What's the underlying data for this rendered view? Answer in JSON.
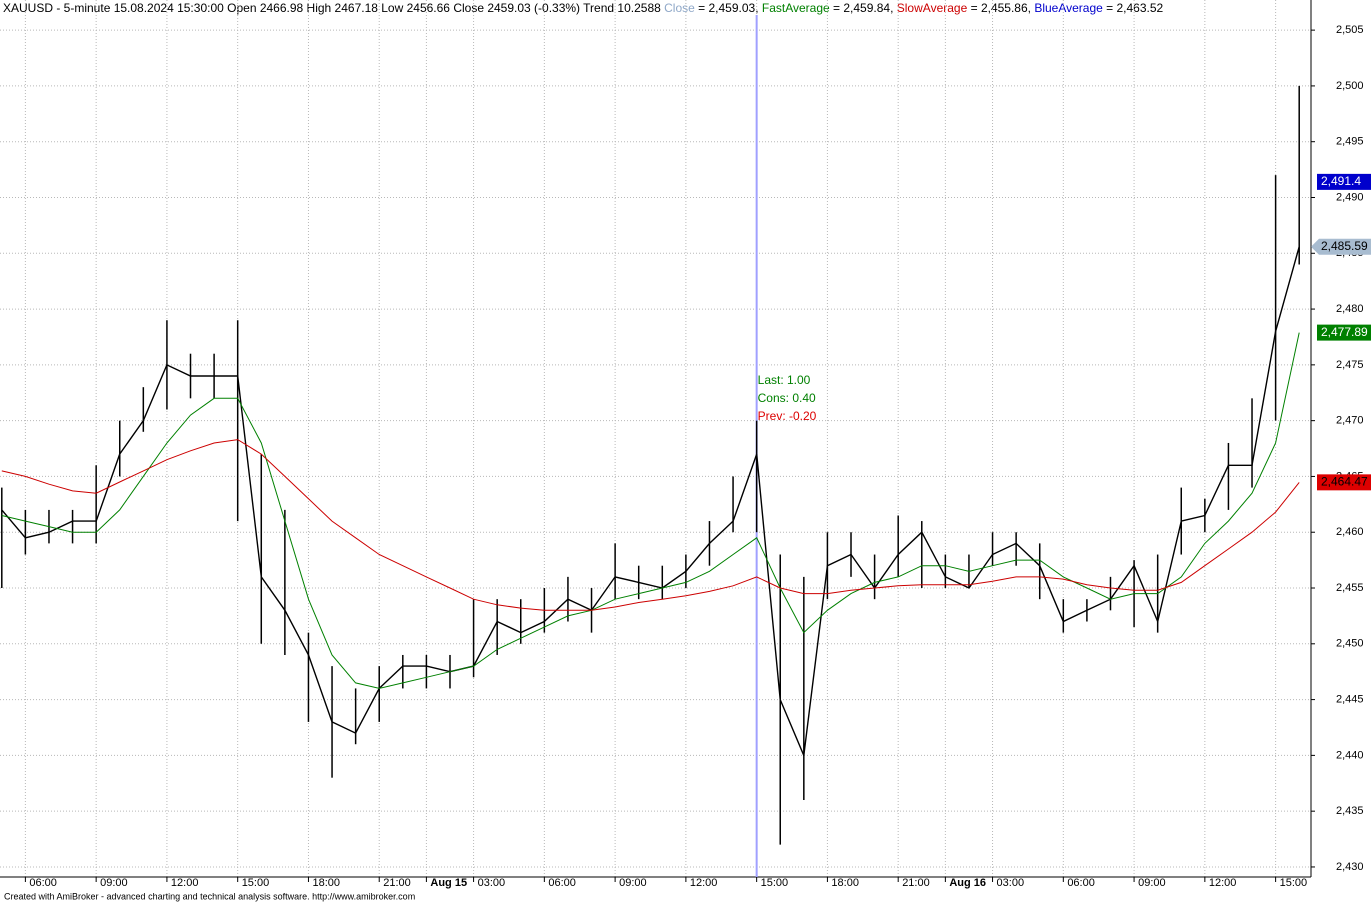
{
  "footer": "Created with AmiBroker - advanced charting and technical analysis software. http://www.amibroker.com",
  "chart_data": {
    "type": "ohlc-line",
    "header": [
      {
        "text": "XAUUSD - 5-minute 15.08.2024 15:30:00 Open 2466.98 High 2467.18 Low 2456.66 Close 2459.03 (-0.33%) Trend 10.2588 ",
        "color": "#000000"
      },
      {
        "text": "Close",
        "color": "#8fa8c8"
      },
      {
        "text": " = 2,459.03, ",
        "color": "#000000"
      },
      {
        "text": "FastAverage",
        "color": "#008000"
      },
      {
        "text": " = 2,459.84, ",
        "color": "#000000"
      },
      {
        "text": "SlowAverage",
        "color": "#cc0000"
      },
      {
        "text": " = 2,455.86, ",
        "color": "#000000"
      },
      {
        "text": "BlueAverage",
        "color": "#0000cc"
      },
      {
        "text": " = 2,463.52",
        "color": "#000000"
      }
    ],
    "categories": [
      null,
      "06:00",
      null,
      null,
      "09:00",
      null,
      null,
      "12:00",
      null,
      null,
      "15:00",
      null,
      null,
      "18:00",
      null,
      null,
      "21:00",
      null,
      "Aug 15",
      null,
      "03:00",
      null,
      null,
      "06:00",
      null,
      null,
      "09:00",
      null,
      null,
      "12:00",
      null,
      null,
      "15:00",
      null,
      null,
      "18:00",
      null,
      null,
      "21:00",
      null,
      "Aug 16",
      null,
      "03:00",
      null,
      null,
      "06:00",
      null,
      null,
      "09:00",
      null,
      null,
      "12:00",
      null,
      null,
      "15:00",
      null
    ],
    "high": [
      2464,
      2462,
      2462,
      2462,
      2466,
      2470,
      2473,
      2479,
      2476,
      2476,
      2479,
      2467,
      2462,
      2451,
      2448,
      2446,
      2448,
      2449,
      2449,
      2449,
      2454,
      2454,
      2454,
      2455,
      2456,
      2455,
      2459,
      2457,
      2457,
      2458,
      2461,
      2465,
      2470,
      2458,
      2456,
      2460,
      2460,
      2458,
      2461.5,
      2461,
      2458,
      2458,
      2460,
      2460,
      2459,
      2454,
      2454,
      2456,
      2457.5,
      2458,
      2464,
      2463,
      2468,
      2472,
      2492,
      2500
    ],
    "low": [
      2455,
      2458,
      2459,
      2459,
      2459,
      2465,
      2469,
      2471,
      2472,
      2472,
      2461,
      2450,
      2449,
      2443,
      2438,
      2441,
      2443,
      2446,
      2446,
      2446,
      2447,
      2449,
      2450,
      2451,
      2452,
      2451,
      2454,
      2454,
      2454,
      2455,
      2457,
      2460,
      2460,
      2432,
      2436,
      2454,
      2456,
      2454,
      2456,
      2455,
      2455,
      2455,
      2457,
      2457,
      2454,
      2451,
      2452,
      2453,
      2451.5,
      2451,
      2458,
      2460,
      2462,
      2464,
      2470,
      2484
    ],
    "series": [
      {
        "name": "Close",
        "color": "#000000",
        "values": [
          2462,
          2459.5,
          2460,
          2461,
          2461,
          2467,
          2470,
          2475,
          2474,
          2474,
          2474,
          2456,
          2453,
          2449,
          2443,
          2442,
          2446,
          2448,
          2448,
          2447.5,
          2448,
          2452,
          2451,
          2452,
          2454,
          2453,
          2456,
          2455.5,
          2455,
          2456.5,
          2459,
          2461,
          2467,
          2445,
          2440,
          2457,
          2458,
          2455,
          2458,
          2460,
          2456,
          2455,
          2458,
          2459,
          2457,
          2452,
          2453,
          2454,
          2457,
          2452,
          2461,
          2461.5,
          2466,
          2466,
          2478,
          2485.59
        ]
      },
      {
        "name": "FastAverage",
        "color": "#008000",
        "values": [
          2461.5,
          2461,
          2460.5,
          2460,
          2460,
          2462,
          2465,
          2468,
          2470.5,
          2472,
          2472,
          2468,
          2461,
          2454,
          2449,
          2446.5,
          2446,
          2446.5,
          2447,
          2447.5,
          2448,
          2449.5,
          2450.5,
          2451.5,
          2452.5,
          2453,
          2454,
          2454.5,
          2455,
          2455.5,
          2456.5,
          2458,
          2459.5,
          2455,
          2451,
          2453,
          2454.5,
          2455.5,
          2456,
          2457,
          2457,
          2456.5,
          2457,
          2457.5,
          2457.5,
          2456,
          2455,
          2454,
          2454.5,
          2454.5,
          2456,
          2459,
          2461,
          2463.5,
          2468,
          2477.89
        ]
      },
      {
        "name": "SlowAverage",
        "color": "#cc0000",
        "values": [
          2465.5,
          2465,
          2464.3,
          2463.7,
          2463.5,
          2464.5,
          2465.5,
          2466.5,
          2467.3,
          2468,
          2468.3,
          2467,
          2465,
          2463,
          2461,
          2459.5,
          2458,
          2457,
          2456,
          2455,
          2454,
          2453.5,
          2453.2,
          2453,
          2453,
          2453,
          2453.3,
          2453.7,
          2454,
          2454.3,
          2454.7,
          2455.2,
          2456,
          2455,
          2454.5,
          2454.5,
          2454.8,
          2455,
          2455.2,
          2455.3,
          2455.3,
          2455.3,
          2455.6,
          2456,
          2456,
          2455.8,
          2455.3,
          2455,
          2454.8,
          2454.8,
          2455.5,
          2457,
          2458.5,
          2460,
          2461.8,
          2464.47
        ]
      }
    ],
    "markers": [
      {
        "value": 2491.4,
        "label": "2,491.4",
        "color": "#0000cc",
        "text_color": "#ffffff"
      },
      {
        "value": 2485.59,
        "label": "2,485.59",
        "color": "#a8bcd0",
        "text_color": "#000000",
        "arrow": true
      },
      {
        "value": 2477.89,
        "label": "2,477.89",
        "color": "#008000",
        "text_color": "#ffffff"
      },
      {
        "value": 2464.47,
        "label": "2,464.47",
        "color": "#dd0000",
        "text_color": "#000000"
      }
    ],
    "cursor": 32,
    "cursor_color": "#a0a0ff",
    "annotation": [
      {
        "text": "Last: 1.00",
        "color": "#008000"
      },
      {
        "text": "Cons: 0.40",
        "color": "#008000"
      },
      {
        "text": "Prev: -0.20",
        "color": "#dd0000"
      }
    ],
    "ylim": [
      2429.1,
      2507.7
    ],
    "yticks": [
      {
        "value": 2430,
        "label": "2,430"
      },
      {
        "value": 2435,
        "label": "2,435"
      },
      {
        "value": 2440,
        "label": "2,440"
      },
      {
        "value": 2445,
        "label": "2,445"
      },
      {
        "value": 2450,
        "label": "2,450"
      },
      {
        "value": 2455,
        "label": "2,455"
      },
      {
        "value": 2460,
        "label": "2,460"
      },
      {
        "value": 2465,
        "label": "2,465"
      },
      {
        "value": 2470,
        "label": "2,470"
      },
      {
        "value": 2475,
        "label": "2,475"
      },
      {
        "value": 2480,
        "label": "2,480"
      },
      {
        "value": 2485,
        "label": "2,485"
      },
      {
        "value": 2490,
        "label": "2,490"
      },
      {
        "value": 2495,
        "label": "2,495"
      },
      {
        "value": 2500,
        "label": "2,500"
      },
      {
        "value": 2505,
        "label": "2,505"
      }
    ],
    "grid": true
  }
}
